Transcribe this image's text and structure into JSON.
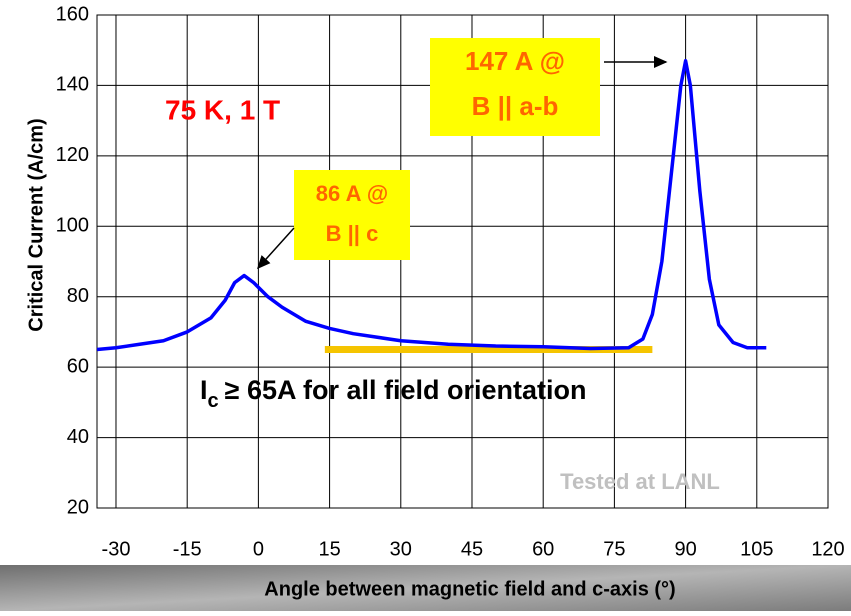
{
  "chart_data": {
    "type": "line",
    "y_label": "Critical Current (A/cm)",
    "x_label": "Angle between magnetic field and c-axis (°)",
    "xlim": [
      -34,
      120
    ],
    "xticks": [
      -30,
      -15,
      0,
      15,
      30,
      45,
      60,
      75,
      90,
      105,
      120
    ],
    "ylim": [
      20,
      160
    ],
    "yticks": [
      20,
      40,
      60,
      80,
      100,
      120,
      140,
      160
    ],
    "grid": true,
    "series": [
      {
        "name": "Critical current",
        "color": "#0000ff",
        "x": [
          -34,
          -30,
          -25,
          -20,
          -15,
          -10,
          -7,
          -5,
          -3,
          -1,
          2,
          5,
          10,
          15,
          20,
          30,
          40,
          50,
          60,
          70,
          78,
          81,
          83,
          85,
          87,
          89,
          90,
          91,
          93,
          95,
          97,
          100,
          103,
          107
        ],
        "values": [
          65,
          65.5,
          66.5,
          67.5,
          70,
          74,
          79,
          84,
          86,
          84,
          80,
          77,
          73,
          71,
          69.5,
          67.5,
          66.5,
          66,
          65.8,
          65.3,
          65.5,
          68,
          75,
          90,
          115,
          140,
          147,
          140,
          110,
          85,
          72,
          67,
          65.5,
          65.5
        ]
      }
    ],
    "threshold": {
      "color": "#f5c400",
      "x": [
        14,
        83
      ],
      "value": 65
    },
    "condition": "75 K, 1 T",
    "peak_ab": [
      "147 A @",
      "B || a-b"
    ],
    "peak_c": [
      "86 A @",
      "B || c"
    ],
    "statement": {
      "symbol": "I",
      "subscript": "c",
      "text": "≥ 65A for all field orientation"
    },
    "credit": "Tested at LANL"
  }
}
